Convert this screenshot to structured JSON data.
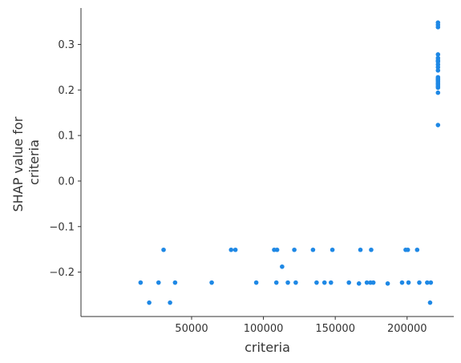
{
  "chart_data": {
    "type": "scatter",
    "title": "",
    "xlabel": "criteria",
    "ylabel_lines": [
      "SHAP value for",
      "criteria"
    ],
    "xlim": [
      -27000,
      232500
    ],
    "ylim": [
      -0.2975,
      0.38
    ],
    "xticks": [
      50000,
      100000,
      150000,
      200000
    ],
    "xtick_labels": [
      "50000",
      "100000",
      "150000",
      "200000"
    ],
    "yticks": [
      -0.2,
      -0.1,
      0.0,
      0.1,
      0.2,
      0.3
    ],
    "ytick_labels": [
      "−0.2",
      "−0.1",
      "0.0",
      "0.1",
      "0.2",
      "0.3"
    ],
    "grid": false,
    "point_color": "#1e88e5",
    "points": [
      {
        "x": 14500,
        "y": -0.223
      },
      {
        "x": 20500,
        "y": -0.267
      },
      {
        "x": 27000,
        "y": -0.223
      },
      {
        "x": 30500,
        "y": -0.151
      },
      {
        "x": 35000,
        "y": -0.267
      },
      {
        "x": 38500,
        "y": -0.223
      },
      {
        "x": 64000,
        "y": -0.223
      },
      {
        "x": 77500,
        "y": -0.151
      },
      {
        "x": 80500,
        "y": -0.151
      },
      {
        "x": 95000,
        "y": -0.223
      },
      {
        "x": 107500,
        "y": -0.151
      },
      {
        "x": 109500,
        "y": -0.151
      },
      {
        "x": 109000,
        "y": -0.223
      },
      {
        "x": 113000,
        "y": -0.188
      },
      {
        "x": 117000,
        "y": -0.223
      },
      {
        "x": 121500,
        "y": -0.151
      },
      {
        "x": 122500,
        "y": -0.223
      },
      {
        "x": 134500,
        "y": -0.151
      },
      {
        "x": 137000,
        "y": -0.223
      },
      {
        "x": 142500,
        "y": -0.223
      },
      {
        "x": 147000,
        "y": -0.223
      },
      {
        "x": 148000,
        "y": -0.151
      },
      {
        "x": 159500,
        "y": -0.223
      },
      {
        "x": 166500,
        "y": -0.225
      },
      {
        "x": 167500,
        "y": -0.151
      },
      {
        "x": 172000,
        "y": -0.223
      },
      {
        "x": 174500,
        "y": -0.223
      },
      {
        "x": 175000,
        "y": -0.151
      },
      {
        "x": 176500,
        "y": -0.223
      },
      {
        "x": 186500,
        "y": -0.225
      },
      {
        "x": 196500,
        "y": -0.223
      },
      {
        "x": 199000,
        "y": -0.151
      },
      {
        "x": 200500,
        "y": -0.151
      },
      {
        "x": 201000,
        "y": -0.223
      },
      {
        "x": 207000,
        "y": -0.151
      },
      {
        "x": 208500,
        "y": -0.223
      },
      {
        "x": 214000,
        "y": -0.223
      },
      {
        "x": 216500,
        "y": -0.223
      },
      {
        "x": 216000,
        "y": -0.267
      },
      {
        "x": 221500,
        "y": 0.348
      },
      {
        "x": 221500,
        "y": 0.343
      },
      {
        "x": 221500,
        "y": 0.338
      },
      {
        "x": 221500,
        "y": 0.278
      },
      {
        "x": 221500,
        "y": 0.27
      },
      {
        "x": 221500,
        "y": 0.265
      },
      {
        "x": 221500,
        "y": 0.262
      },
      {
        "x": 221500,
        "y": 0.256
      },
      {
        "x": 221500,
        "y": 0.25
      },
      {
        "x": 221500,
        "y": 0.243
      },
      {
        "x": 221500,
        "y": 0.228
      },
      {
        "x": 221500,
        "y": 0.225
      },
      {
        "x": 221500,
        "y": 0.222
      },
      {
        "x": 221500,
        "y": 0.219
      },
      {
        "x": 221500,
        "y": 0.215
      },
      {
        "x": 221500,
        "y": 0.212
      },
      {
        "x": 221500,
        "y": 0.208
      },
      {
        "x": 221500,
        "y": 0.205
      },
      {
        "x": 221500,
        "y": 0.194
      },
      {
        "x": 221500,
        "y": 0.123
      }
    ]
  }
}
